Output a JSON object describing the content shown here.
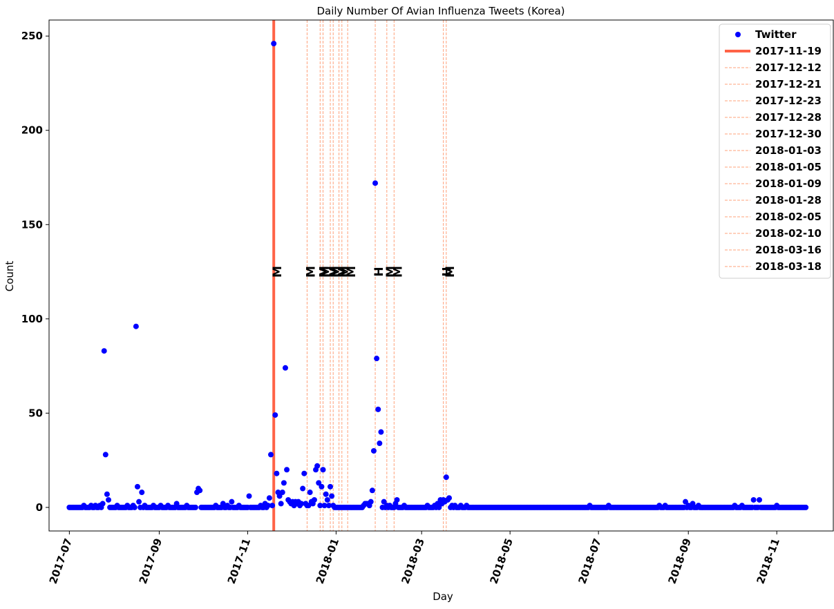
{
  "chart_data": {
    "type": "scatter",
    "title": "Daily Number Of Avian Influenza Tweets (Korea)",
    "xlabel": "Day",
    "ylabel": "Count",
    "ylim": [
      -12.5,
      258.5
    ],
    "xlim": [
      "2017-06-17",
      "2018-12-10"
    ],
    "y_ticks": [
      0,
      50,
      100,
      150,
      200,
      250
    ],
    "x_ticks": [
      "2017-07-01",
      "2017-09-01",
      "2017-11-01",
      "2018-01-01",
      "2018-03-01",
      "2018-05-01",
      "2018-07-01",
      "2018-09-01",
      "2018-11-01"
    ],
    "x_tick_labels": [
      "2017-07",
      "2017-09",
      "2017-11",
      "2018-01",
      "2018-03",
      "2018-05",
      "2018-07",
      "2018-09",
      "2018-11"
    ],
    "legend_position": "top-right",
    "series": [
      {
        "name": "Twitter",
        "color": "#0000ff",
        "marker": "circle",
        "start_date": "2017-07-01",
        "end_date": "2018-11-21",
        "baseline": 0,
        "points": [
          [
            "2017-07-11",
            1
          ],
          [
            "2017-07-16",
            1
          ],
          [
            "2017-07-19",
            1
          ],
          [
            "2017-07-22",
            1
          ],
          [
            "2017-07-24",
            2
          ],
          [
            "2017-07-25",
            83
          ],
          [
            "2017-07-26",
            28
          ],
          [
            "2017-07-27",
            7
          ],
          [
            "2017-07-28",
            4
          ],
          [
            "2017-08-03",
            1
          ],
          [
            "2017-08-10",
            1
          ],
          [
            "2017-08-14",
            1
          ],
          [
            "2017-08-16",
            96
          ],
          [
            "2017-08-17",
            11
          ],
          [
            "2017-08-18",
            3
          ],
          [
            "2017-08-20",
            8
          ],
          [
            "2017-08-22",
            1
          ],
          [
            "2017-08-28",
            1
          ],
          [
            "2017-09-02",
            1
          ],
          [
            "2017-09-07",
            1
          ],
          [
            "2017-09-13",
            2
          ],
          [
            "2017-09-20",
            1
          ],
          [
            "2017-09-27",
            8
          ],
          [
            "2017-09-28",
            10
          ],
          [
            "2017-09-29",
            9
          ],
          [
            "2017-10-10",
            1
          ],
          [
            "2017-10-15",
            2
          ],
          [
            "2017-10-18",
            1
          ],
          [
            "2017-10-21",
            3
          ],
          [
            "2017-10-26",
            1
          ],
          [
            "2017-11-02",
            6
          ],
          [
            "2017-11-10",
            1
          ],
          [
            "2017-11-13",
            2
          ],
          [
            "2017-11-15",
            1
          ],
          [
            "2017-11-16",
            5
          ],
          [
            "2017-11-17",
            28
          ],
          [
            "2017-11-18",
            1
          ],
          [
            "2017-11-19",
            246
          ],
          [
            "2017-11-20",
            49
          ],
          [
            "2017-11-21",
            18
          ],
          [
            "2017-11-22",
            8
          ],
          [
            "2017-11-23",
            6
          ],
          [
            "2017-11-24",
            2
          ],
          [
            "2017-11-25",
            8
          ],
          [
            "2017-11-26",
            13
          ],
          [
            "2017-11-27",
            74
          ],
          [
            "2017-11-28",
            20
          ],
          [
            "2017-11-29",
            4
          ],
          [
            "2017-11-30",
            3
          ],
          [
            "2017-12-01",
            2
          ],
          [
            "2017-12-02",
            3
          ],
          [
            "2017-12-03",
            1
          ],
          [
            "2017-12-04",
            3
          ],
          [
            "2017-12-05",
            2
          ],
          [
            "2017-12-06",
            3
          ],
          [
            "2017-12-07",
            1
          ],
          [
            "2017-12-08",
            2
          ],
          [
            "2017-12-09",
            10
          ],
          [
            "2017-12-10",
            18
          ],
          [
            "2017-12-11",
            2
          ],
          [
            "2017-12-12",
            1
          ],
          [
            "2017-12-13",
            1
          ],
          [
            "2017-12-14",
            8
          ],
          [
            "2017-12-15",
            3
          ],
          [
            "2017-12-16",
            2
          ],
          [
            "2017-12-17",
            4
          ],
          [
            "2017-12-18",
            20
          ],
          [
            "2017-12-19",
            22
          ],
          [
            "2017-12-20",
            13
          ],
          [
            "2017-12-21",
            1
          ],
          [
            "2017-12-22",
            11
          ],
          [
            "2017-12-23",
            20
          ],
          [
            "2017-12-24",
            1
          ],
          [
            "2017-12-25",
            7
          ],
          [
            "2017-12-26",
            4
          ],
          [
            "2017-12-27",
            1
          ],
          [
            "2017-12-28",
            11
          ],
          [
            "2017-12-29",
            6
          ],
          [
            "2017-12-30",
            1
          ],
          [
            "2018-01-20",
            1
          ],
          [
            "2018-01-21",
            2
          ],
          [
            "2018-01-22",
            2
          ],
          [
            "2018-01-23",
            2
          ],
          [
            "2018-01-24",
            1
          ],
          [
            "2018-01-25",
            3
          ],
          [
            "2018-01-26",
            9
          ],
          [
            "2018-01-27",
            30
          ],
          [
            "2018-01-28",
            172
          ],
          [
            "2018-01-29",
            79
          ],
          [
            "2018-01-30",
            52
          ],
          [
            "2018-01-31",
            34
          ],
          [
            "2018-02-01",
            40
          ],
          [
            "2018-02-03",
            3
          ],
          [
            "2018-02-05",
            1
          ],
          [
            "2018-02-07",
            1
          ],
          [
            "2018-02-11",
            2
          ],
          [
            "2018-02-12",
            4
          ],
          [
            "2018-02-17",
            1
          ],
          [
            "2018-03-05",
            1
          ],
          [
            "2018-03-10",
            1
          ],
          [
            "2018-03-12",
            2
          ],
          [
            "2018-03-14",
            4
          ],
          [
            "2018-03-15",
            2
          ],
          [
            "2018-03-16",
            4
          ],
          [
            "2018-03-17",
            3
          ],
          [
            "2018-03-18",
            16
          ],
          [
            "2018-03-19",
            4
          ],
          [
            "2018-03-20",
            5
          ],
          [
            "2018-03-22",
            1
          ],
          [
            "2018-03-24",
            1
          ],
          [
            "2018-03-28",
            1
          ],
          [
            "2018-04-01",
            1
          ],
          [
            "2018-06-25",
            1
          ],
          [
            "2018-07-08",
            1
          ],
          [
            "2018-08-12",
            1
          ],
          [
            "2018-08-16",
            1
          ],
          [
            "2018-08-30",
            3
          ],
          [
            "2018-09-01",
            1
          ],
          [
            "2018-09-04",
            2
          ],
          [
            "2018-09-08",
            1
          ],
          [
            "2018-10-03",
            1
          ],
          [
            "2018-10-08",
            1
          ],
          [
            "2018-10-16",
            4
          ],
          [
            "2018-10-20",
            4
          ],
          [
            "2018-11-01",
            1
          ]
        ]
      }
    ],
    "vlines": [
      {
        "date": "2017-11-19",
        "label": "2017-11-19",
        "style": "solid",
        "color": "#ff6347",
        "marker": "M"
      },
      {
        "date": "2017-12-12",
        "label": "2017-12-12",
        "style": "dashed",
        "color": "#ffa07a",
        "marker": "M"
      },
      {
        "date": "2017-12-21",
        "label": "2017-12-21",
        "style": "dashed",
        "color": "#ffa07a",
        "marker": "M"
      },
      {
        "date": "2017-12-23",
        "label": "2017-12-23",
        "style": "dashed",
        "color": "#ffa07a",
        "marker": "M"
      },
      {
        "date": "2017-12-28",
        "label": "2017-12-28",
        "style": "dashed",
        "color": "#ffa07a",
        "marker": "M"
      },
      {
        "date": "2017-12-30",
        "label": "2017-12-30",
        "style": "dashed",
        "color": "#ffa07a",
        "marker": "M"
      },
      {
        "date": "2018-01-03",
        "label": "2018-01-03",
        "style": "dashed",
        "color": "#ffa07a",
        "marker": "M"
      },
      {
        "date": "2018-01-05",
        "label": "2018-01-05",
        "style": "dashed",
        "color": "#ffa07a",
        "marker": "M"
      },
      {
        "date": "2018-01-09",
        "label": "2018-01-09",
        "style": "dashed",
        "color": "#ffa07a",
        "marker": "M"
      },
      {
        "date": "2018-01-28",
        "label": "2018-01-28",
        "style": "dashed",
        "color": "#ffa07a",
        "marker": "H"
      },
      {
        "date": "2018-02-05",
        "label": "2018-02-05",
        "style": "dashed",
        "color": "#ffa07a",
        "marker": "M"
      },
      {
        "date": "2018-02-10",
        "label": "2018-02-10",
        "style": "dashed",
        "color": "#ffa07a",
        "marker": "M"
      },
      {
        "date": "2018-03-16",
        "label": "2018-03-16",
        "style": "dashed",
        "color": "#ffa07a",
        "marker": "H"
      },
      {
        "date": "2018-03-18",
        "label": "2018-03-18",
        "style": "dashed",
        "color": "#ffa07a",
        "marker": "M"
      }
    ],
    "marker_y": 125,
    "grid": false
  }
}
